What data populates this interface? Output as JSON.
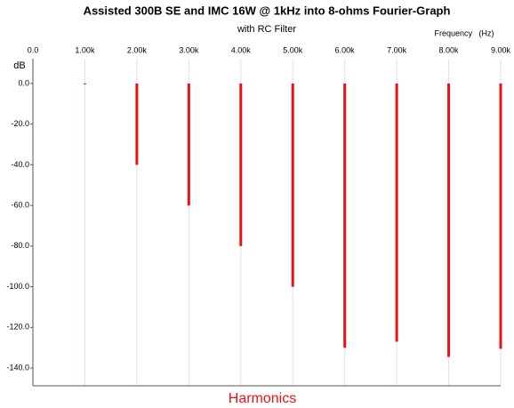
{
  "chart_data": {
    "type": "bar",
    "title": "Assisted 300B SE and IMC 16W @ 1kHz into 8-ohms Fourier-Graph",
    "subtitle": "with RC Filter",
    "x_label_top": "Frequency   (Hz)",
    "y_label": "dB",
    "x_label": "Harmonics",
    "x": [
      1000,
      2000,
      3000,
      4000,
      5000,
      6000,
      7000,
      8000,
      9000
    ],
    "values": [
      0,
      -40,
      -60,
      -80,
      -100,
      -130,
      -127,
      -134.5,
      -130.5
    ],
    "color": "#ee1111",
    "xlim": [
      0,
      9000
    ],
    "xticks": [
      {
        "value": 0,
        "label": "0.0"
      },
      {
        "value": 1000,
        "label": "1.00k"
      },
      {
        "value": 2000,
        "label": "2.00k"
      },
      {
        "value": 3000,
        "label": "3.00k"
      },
      {
        "value": 4000,
        "label": "4.00k"
      },
      {
        "value": 5000,
        "label": "5.00k"
      },
      {
        "value": 6000,
        "label": "6.00k"
      },
      {
        "value": 7000,
        "label": "7.00k"
      },
      {
        "value": 8000,
        "label": "8.00k"
      },
      {
        "value": 9000,
        "label": "9.00k"
      }
    ],
    "ylim": [
      -148.7,
      12.2
    ],
    "yticks": [
      {
        "value": 0,
        "label": "0.0"
      },
      {
        "value": -20,
        "label": "-20.0"
      },
      {
        "value": -40,
        "label": "-40.0"
      },
      {
        "value": -60,
        "label": "-60.0"
      },
      {
        "value": -80,
        "label": "-80.0"
      },
      {
        "value": -100,
        "label": "-100.0"
      },
      {
        "value": -120,
        "label": "-120.0"
      },
      {
        "value": -140,
        "label": "-140.0"
      }
    ],
    "grid": true
  }
}
